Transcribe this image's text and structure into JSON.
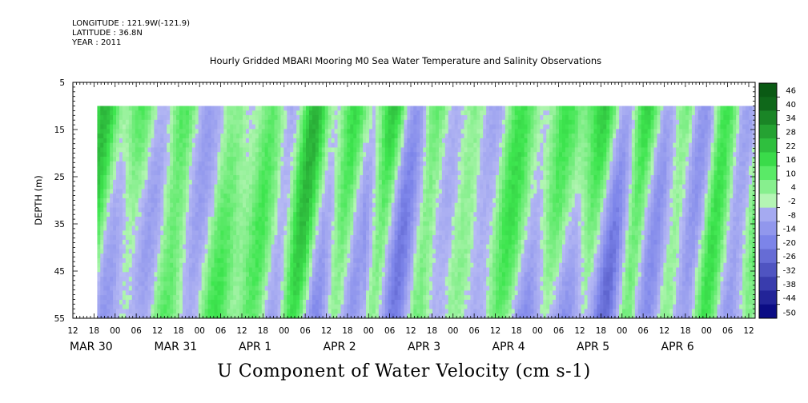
{
  "header": {
    "longitude": "LONGITUDE : 121.9W(-121.9)",
    "latitude": "LATITUDE : 36.8N",
    "year": "YEAR : 2011"
  },
  "chart_data": {
    "type": "heatmap",
    "title": "Hourly Gridded MBARI Mooring M0 Sea Water Temperature and Salinity Observations",
    "colorbar_title": "U Component of Water Velocity (cm s-1)",
    "ylabel": "DEPTH (m)",
    "y_ticks": [
      5,
      15,
      25,
      35,
      45,
      55
    ],
    "ylim": [
      55,
      5
    ],
    "data_depth_range": [
      10,
      55
    ],
    "x_hour_ticks": [
      "12",
      "18",
      "00",
      "06",
      "12",
      "18",
      "00",
      "06",
      "12",
      "18",
      "00",
      "06",
      "12",
      "18",
      "00",
      "06",
      "12",
      "18",
      "00",
      "06",
      "12",
      "18",
      "00",
      "06",
      "12",
      "18",
      "00",
      "06",
      "12",
      "18",
      "00",
      "06",
      "12"
    ],
    "x_day_labels": [
      {
        "label": "MAR 30",
        "hour_index": 0
      },
      {
        "label": "MAR 31",
        "hour_index": 4
      },
      {
        "label": "APR  1",
        "hour_index": 8
      },
      {
        "label": "APR  2",
        "hour_index": 12
      },
      {
        "label": "APR  3",
        "hour_index": 16
      },
      {
        "label": "APR  4",
        "hour_index": 20
      },
      {
        "label": "APR  5",
        "hour_index": 24
      },
      {
        "label": "APR  6",
        "hour_index": 28
      }
    ],
    "data_start_hour_index": 1.15,
    "data_end_hour_index": 32.3,
    "colorbar_levels": [
      46,
      40,
      34,
      28,
      22,
      16,
      10,
      4,
      -2,
      -8,
      -14,
      -20,
      -26,
      -32,
      -38,
      -44,
      -50
    ],
    "colorbar_range": [
      -50,
      52
    ],
    "colors": {
      "pos_light": "#b4f5b4",
      "pos_mid": "#3ee64f",
      "pos_dark": "#0a5a14",
      "neg_light": "#b9bcf4",
      "neg_mid": "#7d85ea",
      "neg_dark": "#00007a"
    },
    "pattern_note": "Alternating green (positive/eastward) and blue (negative/westward) vertical bands varying with time; blue dominant at depth after Apr 2"
  }
}
